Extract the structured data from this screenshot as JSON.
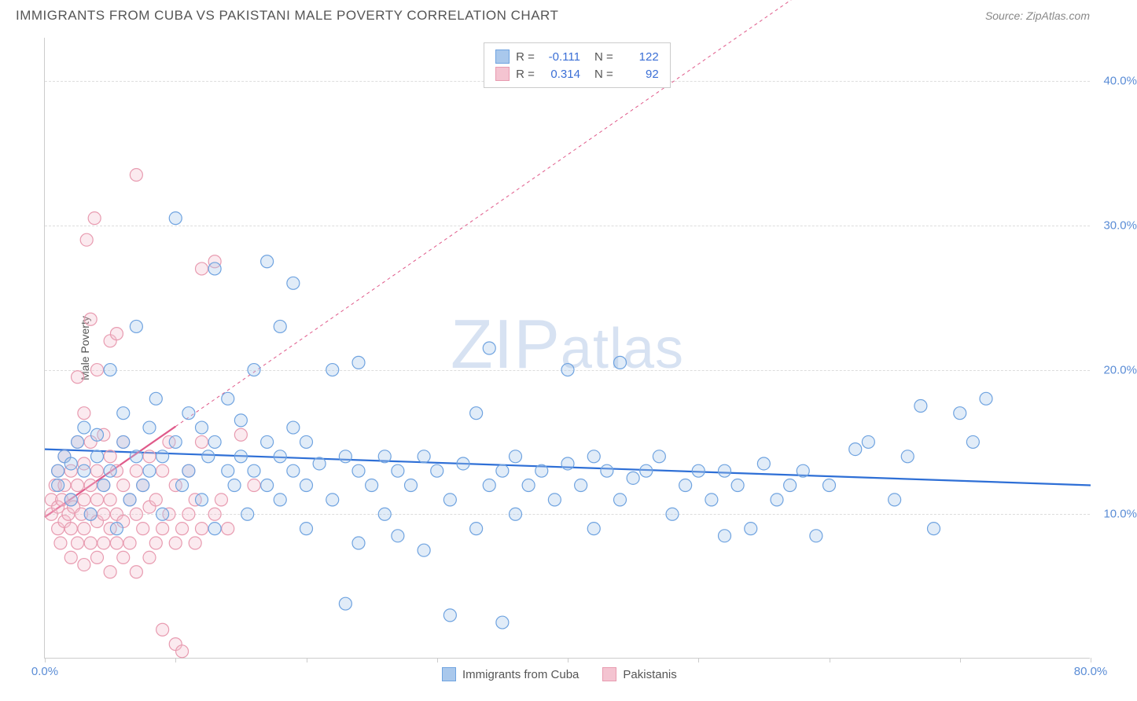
{
  "title": "IMMIGRANTS FROM CUBA VS PAKISTANI MALE POVERTY CORRELATION CHART",
  "source": "Source: ZipAtlas.com",
  "ylabel": "Male Poverty",
  "watermark": {
    "pre": "ZIP",
    "post": "atlas"
  },
  "chart": {
    "type": "scatter",
    "xlim": [
      0,
      80
    ],
    "ylim": [
      0,
      43
    ],
    "x_ticks": [
      0,
      10,
      20,
      30,
      40,
      50,
      60,
      70,
      80
    ],
    "x_tick_labels": {
      "0": "0.0%",
      "80": "80.0%"
    },
    "y_grid": [
      10,
      20,
      30,
      40
    ],
    "y_tick_labels": {
      "10": "10.0%",
      "20": "20.0%",
      "30": "30.0%",
      "40": "40.0%"
    },
    "background_color": "#ffffff",
    "grid_color": "#dddddd",
    "axis_color": "#cccccc",
    "marker_radius": 8,
    "marker_stroke_width": 1.2,
    "marker_fill_opacity": 0.35,
    "series": [
      {
        "name": "Immigrants from Cuba",
        "color_stroke": "#6fa3e0",
        "color_fill": "#a9c8ec",
        "trend": {
          "y_at_x0": 14.5,
          "y_at_xmax": 12.0,
          "stroke": "#2e6fd6",
          "width": 2.2,
          "dash": null
        },
        "points": [
          [
            1,
            12
          ],
          [
            1,
            13
          ],
          [
            1.5,
            14
          ],
          [
            2,
            11
          ],
          [
            2,
            13.5
          ],
          [
            2.5,
            15
          ],
          [
            3,
            13
          ],
          [
            3,
            16
          ],
          [
            3.5,
            10
          ],
          [
            4,
            14
          ],
          [
            4,
            15.5
          ],
          [
            4.5,
            12
          ],
          [
            5,
            13
          ],
          [
            5,
            20
          ],
          [
            5.5,
            9
          ],
          [
            6,
            15
          ],
          [
            6,
            17
          ],
          [
            6.5,
            11
          ],
          [
            7,
            14
          ],
          [
            7,
            23
          ],
          [
            7.5,
            12
          ],
          [
            8,
            13
          ],
          [
            8,
            16
          ],
          [
            8.5,
            18
          ],
          [
            9,
            10
          ],
          [
            9,
            14
          ],
          [
            10,
            15
          ],
          [
            10,
            30.5
          ],
          [
            10.5,
            12
          ],
          [
            11,
            13
          ],
          [
            11,
            17
          ],
          [
            12,
            11
          ],
          [
            12,
            16
          ],
          [
            12.5,
            14
          ],
          [
            13,
            9
          ],
          [
            13,
            15
          ],
          [
            13,
            27
          ],
          [
            14,
            13
          ],
          [
            14,
            18
          ],
          [
            14.5,
            12
          ],
          [
            15,
            14
          ],
          [
            15,
            16.5
          ],
          [
            15.5,
            10
          ],
          [
            16,
            13
          ],
          [
            16,
            20
          ],
          [
            17,
            12
          ],
          [
            17,
            15
          ],
          [
            17,
            27.5
          ],
          [
            18,
            11
          ],
          [
            18,
            14
          ],
          [
            18,
            23
          ],
          [
            19,
            13
          ],
          [
            19,
            16
          ],
          [
            19,
            26
          ],
          [
            20,
            9
          ],
          [
            20,
            12
          ],
          [
            20,
            15
          ],
          [
            21,
            13.5
          ],
          [
            22,
            11
          ],
          [
            22,
            20
          ],
          [
            23,
            3.8
          ],
          [
            23,
            14
          ],
          [
            24,
            8
          ],
          [
            24,
            13
          ],
          [
            24,
            20.5
          ],
          [
            25,
            12
          ],
          [
            26,
            10
          ],
          [
            26,
            14
          ],
          [
            27,
            13
          ],
          [
            27,
            8.5
          ],
          [
            28,
            12
          ],
          [
            29,
            7.5
          ],
          [
            29,
            14
          ],
          [
            30,
            13
          ],
          [
            31,
            11
          ],
          [
            31,
            3
          ],
          [
            32,
            13.5
          ],
          [
            33,
            9
          ],
          [
            33,
            17
          ],
          [
            34,
            12
          ],
          [
            34,
            21.5
          ],
          [
            35,
            13
          ],
          [
            35,
            2.5
          ],
          [
            36,
            10
          ],
          [
            36,
            14
          ],
          [
            37,
            12
          ],
          [
            38,
            13
          ],
          [
            39,
            11
          ],
          [
            40,
            13.5
          ],
          [
            40,
            20
          ],
          [
            41,
            12
          ],
          [
            42,
            9
          ],
          [
            42,
            14
          ],
          [
            43,
            13
          ],
          [
            44,
            11
          ],
          [
            44,
            20.5
          ],
          [
            45,
            12.5
          ],
          [
            46,
            13
          ],
          [
            47,
            14
          ],
          [
            48,
            10
          ],
          [
            49,
            12
          ],
          [
            50,
            13
          ],
          [
            51,
            11
          ],
          [
            52,
            8.5
          ],
          [
            52,
            13
          ],
          [
            53,
            12
          ],
          [
            54,
            9
          ],
          [
            55,
            13.5
          ],
          [
            56,
            11
          ],
          [
            57,
            12
          ],
          [
            58,
            13
          ],
          [
            59,
            8.5
          ],
          [
            60,
            12
          ],
          [
            62,
            14.5
          ],
          [
            63,
            15
          ],
          [
            65,
            11
          ],
          [
            66,
            14
          ],
          [
            67,
            17.5
          ],
          [
            68,
            9
          ],
          [
            70,
            17
          ],
          [
            71,
            15
          ],
          [
            72,
            18
          ]
        ]
      },
      {
        "name": "Pakistanis",
        "color_stroke": "#e89bb0",
        "color_fill": "#f4c4d1",
        "trend": {
          "y_at_x0": 9.8,
          "y_at_xmax": 60,
          "stroke": "#e05a8a",
          "width": 2.2,
          "dash": "solid_then_dash",
          "solid_until_x": 10
        },
        "points": [
          [
            0.5,
            10
          ],
          [
            0.5,
            11
          ],
          [
            0.8,
            12
          ],
          [
            1,
            9
          ],
          [
            1,
            10.5
          ],
          [
            1,
            13
          ],
          [
            1.2,
            8
          ],
          [
            1.3,
            11
          ],
          [
            1.5,
            9.5
          ],
          [
            1.5,
            12
          ],
          [
            1.5,
            14
          ],
          [
            1.8,
            10
          ],
          [
            2,
            7
          ],
          [
            2,
            9
          ],
          [
            2,
            11
          ],
          [
            2,
            13
          ],
          [
            2.2,
            10.5
          ],
          [
            2.5,
            8
          ],
          [
            2.5,
            12
          ],
          [
            2.5,
            15
          ],
          [
            2.5,
            19.5
          ],
          [
            2.8,
            10
          ],
          [
            3,
            6.5
          ],
          [
            3,
            9
          ],
          [
            3,
            11
          ],
          [
            3,
            13.5
          ],
          [
            3,
            17
          ],
          [
            3.2,
            29
          ],
          [
            3.5,
            8
          ],
          [
            3.5,
            10
          ],
          [
            3.5,
            12
          ],
          [
            3.5,
            15
          ],
          [
            3.5,
            23.5
          ],
          [
            3.8,
            30.5
          ],
          [
            4,
            7
          ],
          [
            4,
            9.5
          ],
          [
            4,
            11
          ],
          [
            4,
            13
          ],
          [
            4,
            20
          ],
          [
            4.5,
            8
          ],
          [
            4.5,
            10
          ],
          [
            4.5,
            12
          ],
          [
            4.5,
            15.5
          ],
          [
            5,
            6
          ],
          [
            5,
            9
          ],
          [
            5,
            11
          ],
          [
            5,
            14
          ],
          [
            5,
            22
          ],
          [
            5.5,
            8
          ],
          [
            5.5,
            10
          ],
          [
            5.5,
            13
          ],
          [
            5.5,
            22.5
          ],
          [
            6,
            7
          ],
          [
            6,
            9.5
          ],
          [
            6,
            12
          ],
          [
            6,
            15
          ],
          [
            6.5,
            8
          ],
          [
            6.5,
            11
          ],
          [
            7,
            6
          ],
          [
            7,
            10
          ],
          [
            7,
            13
          ],
          [
            7,
            33.5
          ],
          [
            7.5,
            9
          ],
          [
            7.5,
            12
          ],
          [
            8,
            7
          ],
          [
            8,
            10.5
          ],
          [
            8,
            14
          ],
          [
            8.5,
            8
          ],
          [
            8.5,
            11
          ],
          [
            9,
            9
          ],
          [
            9,
            13
          ],
          [
            9,
            2
          ],
          [
            9.5,
            10
          ],
          [
            9.5,
            15
          ],
          [
            10,
            8
          ],
          [
            10,
            12
          ],
          [
            10,
            1
          ],
          [
            10.5,
            9
          ],
          [
            10.5,
            0.5
          ],
          [
            11,
            10
          ],
          [
            11,
            13
          ],
          [
            11.5,
            8
          ],
          [
            11.5,
            11
          ],
          [
            12,
            9
          ],
          [
            12,
            15
          ],
          [
            12,
            27
          ],
          [
            13,
            10
          ],
          [
            13,
            27.5
          ],
          [
            13.5,
            11
          ],
          [
            14,
            9
          ],
          [
            15,
            15.5
          ],
          [
            16,
            12
          ]
        ]
      }
    ]
  },
  "stats": [
    {
      "swatch_fill": "#a9c8ec",
      "swatch_stroke": "#6fa3e0",
      "r": "-0.111",
      "n": "122"
    },
    {
      "swatch_fill": "#f4c4d1",
      "swatch_stroke": "#e89bb0",
      "r": "0.314",
      "n": "92"
    }
  ],
  "legend": [
    {
      "label": "Immigrants from Cuba",
      "swatch_fill": "#a9c8ec",
      "swatch_stroke": "#6fa3e0"
    },
    {
      "label": "Pakistanis",
      "swatch_fill": "#f4c4d1",
      "swatch_stroke": "#e89bb0"
    }
  ]
}
